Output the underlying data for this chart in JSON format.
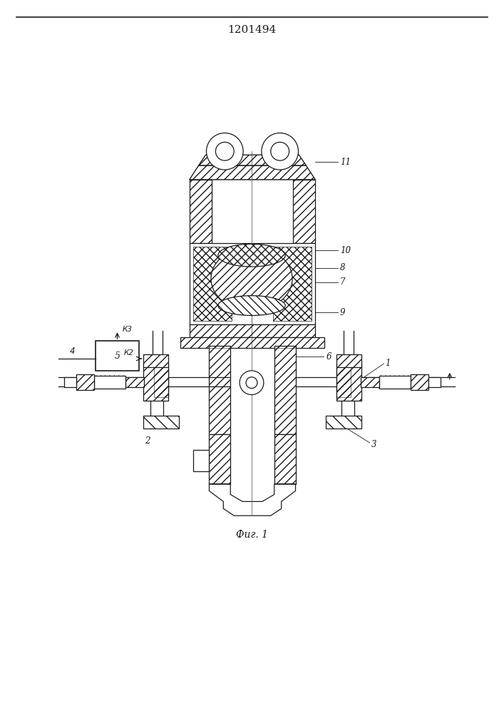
{
  "title": "1201494",
  "caption": "Фиг. 1",
  "bg_color": "#ffffff",
  "line_color": "#1a1a1a",
  "title_fontsize": 11,
  "caption_fontsize": 10
}
